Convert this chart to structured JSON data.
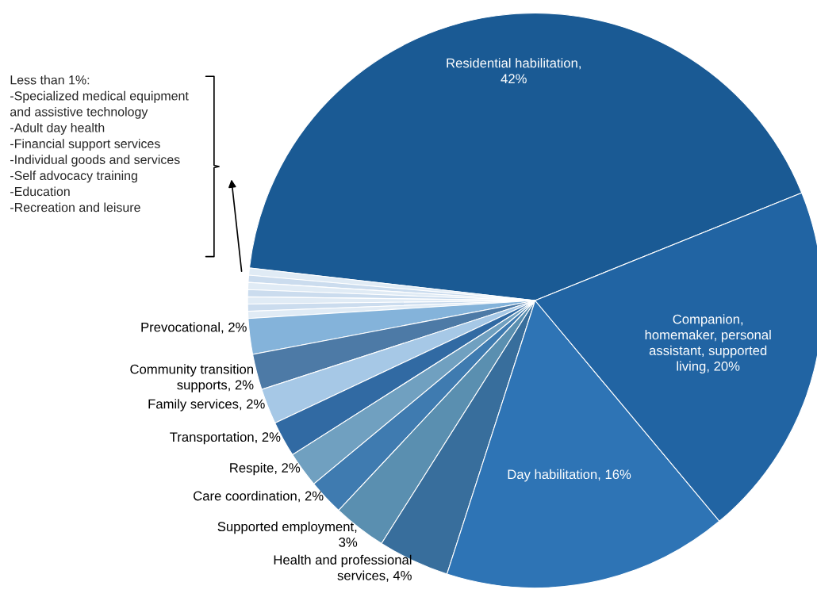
{
  "chart_data": {
    "type": "pie",
    "categories": [
      "Residential habilitation,\n42%",
      null,
      null,
      null,
      null,
      null,
      null,
      null,
      "Prevocational, 2%",
      "Community transition\nsupports, 2%",
      "Family services, 2%",
      "Transportation, 2%",
      "Respite, 2%",
      "Care coordination, 2%",
      "Supported employment,\n3%",
      "Health and professional\nservices, 4%",
      "Day habilitation, 16%",
      "Companion,\nhomemaker, personal\nassistant, supported\nliving, 20%"
    ],
    "values": [
      42,
      0.4,
      0.4,
      0.4,
      0.4,
      0.4,
      0.4,
      0.4,
      2,
      2,
      2,
      2,
      2,
      2,
      3,
      4,
      16,
      20
    ],
    "colors": [
      "#1a5a94",
      "#e0ebf5",
      "#cbdcee",
      "#e0ebf5",
      "#cbdcee",
      "#e0ebf5",
      "#cbdcee",
      "#e0ebf5",
      "#84b3da",
      "#4d7aa6",
      "#a6c8e6",
      "#316aa3",
      "#70a0c0",
      "#3f7bb0",
      "#5a8fb0",
      "#386e9c",
      "#2e74b5",
      "#2164a3"
    ],
    "annotations": [
      "Less than 1%:\n-Specialized medical equipment\nand assistive technology\n-Adult day health\n-Financial support services\n-Individual goods and services\n-Self advocacy training\n-Education\n-Recreation and leisure"
    ]
  }
}
